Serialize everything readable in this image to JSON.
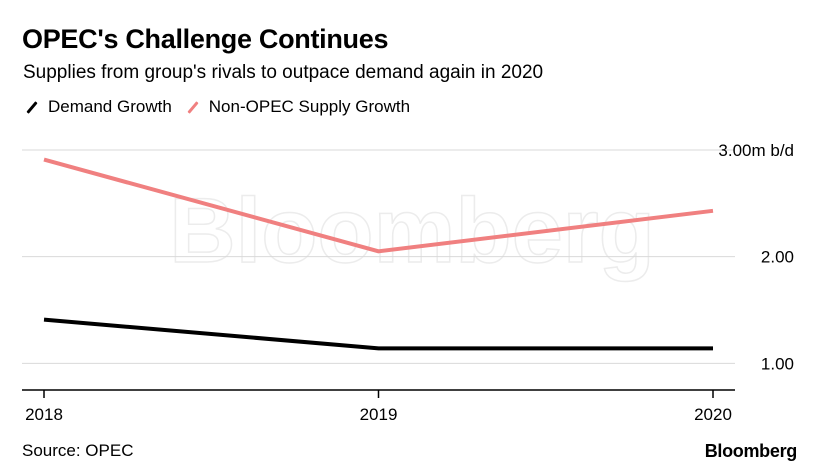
{
  "title": "OPEC's Challenge Continues",
  "subtitle": "Supplies from group's rivals to outpace demand again in 2020",
  "source": "Source: OPEC",
  "brand": "Bloomberg",
  "watermark": "Bloomberg",
  "colors": {
    "demand": "#000000",
    "supply": "#f08080",
    "grid": "#d9d9d9"
  },
  "chart_data": {
    "type": "line",
    "x": [
      "2018",
      "2019",
      "2020"
    ],
    "series": [
      {
        "name": "Demand Growth",
        "values": [
          1.41,
          1.14,
          1.14
        ]
      },
      {
        "name": "Non-OPEC Supply Growth",
        "values": [
          2.91,
          2.05,
          2.43
        ]
      }
    ],
    "yticks": [
      {
        "value": 3.0,
        "label": "3.00m b/d"
      },
      {
        "value": 2.0,
        "label": "2.00"
      },
      {
        "value": 1.0,
        "label": "1.00"
      }
    ],
    "ylim": [
      0.75,
      3.0
    ],
    "grid": true,
    "legend": "top-left"
  }
}
